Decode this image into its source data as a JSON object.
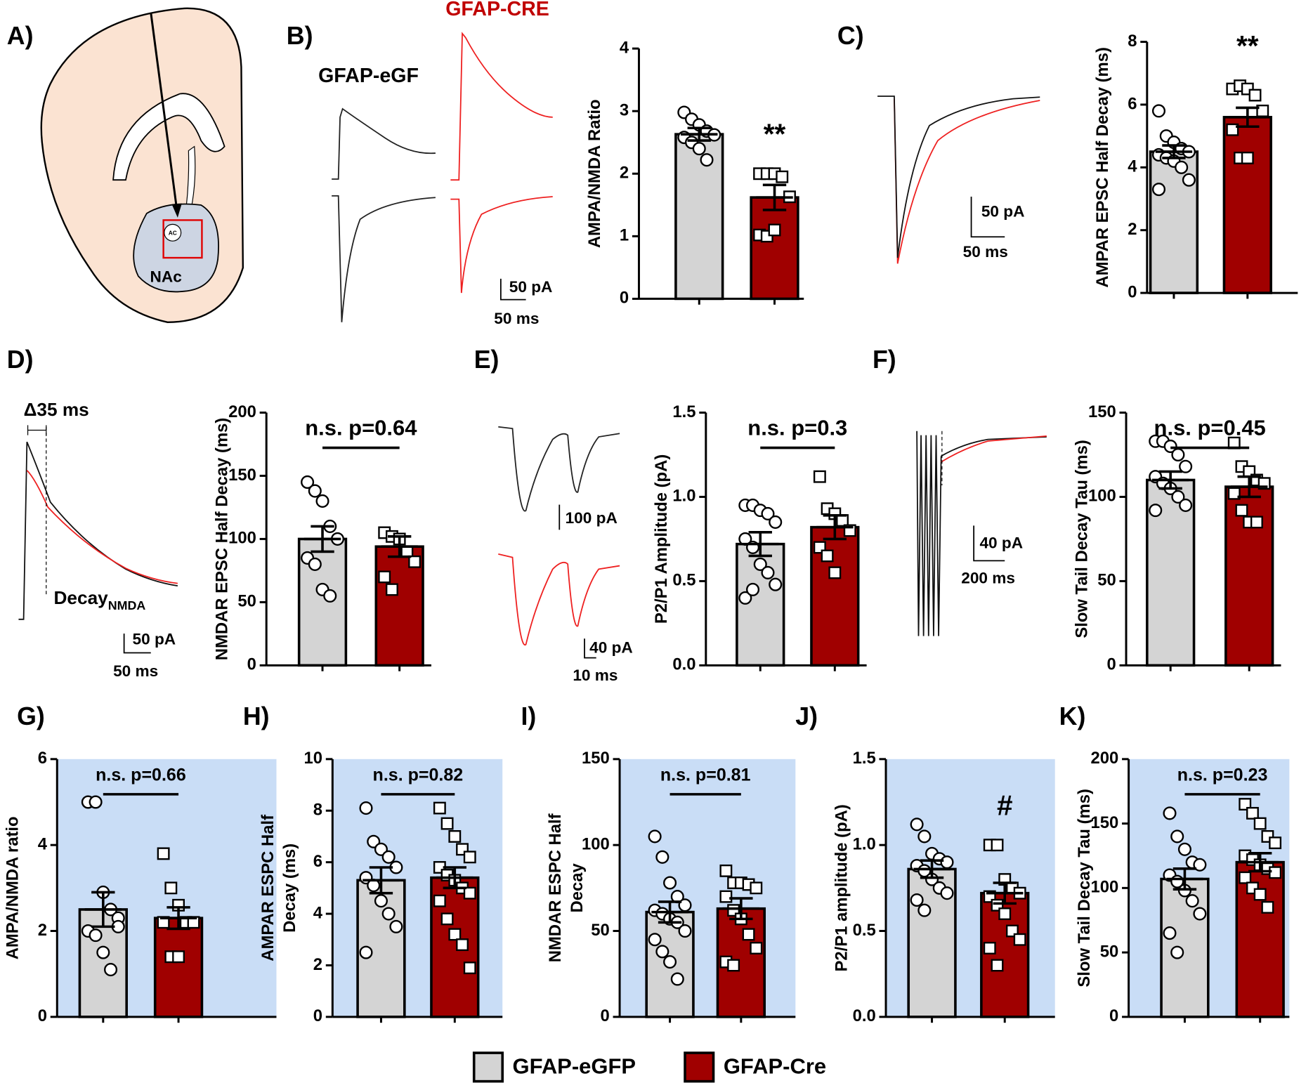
{
  "panel_labels": [
    "A)",
    "B)",
    "C)",
    "D)",
    "E)",
    "F)",
    "G)",
    "H)",
    "I)",
    "J)",
    "K)"
  ],
  "panel_a": {
    "region": "NAc",
    "ac": "AC"
  },
  "panel_b": {
    "egfp_label": "GFAP-eGF",
    "cre_label": "GFAP-CRE",
    "scale_y": "50 pA",
    "scale_x": "50 ms"
  },
  "panel_c": {
    "scale_y": "50 pA",
    "scale_x": "50 ms"
  },
  "panel_d": {
    "delta": "Δ35 ms",
    "decay": "Decay",
    "decay_sub": "NMDA",
    "scale_y": "50 pA",
    "scale_x": "50 ms"
  },
  "panel_e": {
    "scale_y_top": "100 pA",
    "scale_y_bottom": "40 pA",
    "scale_x": "10 ms"
  },
  "panel_f": {
    "scale_y": "40 pA",
    "scale_x": "200 ms"
  },
  "legend": {
    "names": [
      "GFAP-eGFP",
      "GFAP-Cre"
    ],
    "colors": [
      "#d4d4d4",
      "#a00000"
    ]
  },
  "chart_data": [
    {
      "type": "bar",
      "y_label": "AMPA/NMDA Ratio",
      "values": [
        2.63,
        1.62
      ],
      "errors": [
        0.1,
        0.2
      ],
      "colors": [
        "#d4d4d4",
        "#a00000"
      ],
      "markers": [
        "circle",
        "square"
      ],
      "points": [
        [
          2.98,
          2.87,
          2.78,
          2.68,
          2.62,
          2.58,
          2.5,
          2.4,
          2.22
        ],
        [
          2.0,
          2.0,
          2.0,
          1.95,
          1.63,
          1.02,
          1.0,
          1.1
        ]
      ],
      "ylim": [
        0,
        4
      ],
      "yticks": [
        0,
        1,
        2,
        3,
        4
      ],
      "annotation": "**",
      "sig_line": false
    },
    {
      "type": "bar",
      "y_label": "AMPAR  EPSC Half Decay (ms)",
      "values": [
        4.5,
        5.6
      ],
      "errors": [
        0.2,
        0.3
      ],
      "colors": [
        "#d4d4d4",
        "#a00000"
      ],
      "markers": [
        "circle",
        "square"
      ],
      "points": [
        [
          5.8,
          5.0,
          4.8,
          4.6,
          4.5,
          4.4,
          4.3,
          4.2,
          4.0,
          3.6,
          3.3
        ],
        [
          6.5,
          6.6,
          6.5,
          6.3,
          5.8,
          5.2,
          4.3,
          4.3
        ]
      ],
      "ylim": [
        0,
        8
      ],
      "yticks": [
        0,
        2,
        4,
        6,
        8
      ],
      "annotation": "**",
      "sig_line": false
    },
    {
      "type": "bar",
      "y_label": "NMDAR EPSC Half  Decay (ms)",
      "values": [
        100,
        94
      ],
      "errors": [
        10,
        8
      ],
      "colors": [
        "#d4d4d4",
        "#a00000"
      ],
      "markers": [
        "circle",
        "square"
      ],
      "points": [
        [
          145,
          138,
          130,
          110,
          100,
          85,
          80,
          60,
          55
        ],
        [
          105,
          102,
          100,
          90,
          82,
          70,
          60
        ]
      ],
      "ylim": [
        0,
        200
      ],
      "yticks": [
        0,
        50,
        100,
        150,
        200
      ],
      "annotation": "n.s. p=0.64",
      "sig_line": true
    },
    {
      "type": "bar",
      "y_label": "P2/P1 Amplitude (pA)",
      "values": [
        0.72,
        0.82
      ],
      "errors": [
        0.07,
        0.07
      ],
      "colors": [
        "#d4d4d4",
        "#a00000"
      ],
      "markers": [
        "circle",
        "square"
      ],
      "points": [
        [
          0.95,
          0.95,
          0.92,
          0.9,
          0.85,
          0.75,
          0.7,
          0.6,
          0.55,
          0.48,
          0.4,
          0.45
        ],
        [
          1.12,
          0.93,
          0.9,
          0.86,
          0.8,
          0.7,
          0.65,
          0.55
        ]
      ],
      "ylim": [
        0,
        1.5
      ],
      "yticks": [
        {
          "value": 0,
          "label": "0.0"
        },
        0.5,
        {
          "value": 1,
          "label": "1.0"
        },
        1.5
      ],
      "annotation": "n.s. p=0.3",
      "sig_line": true
    },
    {
      "type": "bar",
      "y_label": "Slow Tail Decay Tau (ms)",
      "values": [
        110,
        106
      ],
      "errors": [
        5,
        6
      ],
      "colors": [
        "#d4d4d4",
        "#a00000"
      ],
      "markers": [
        "circle",
        "square"
      ],
      "points": [
        [
          133,
          133,
          130,
          125,
          118,
          112,
          108,
          105,
          100,
          95,
          92
        ],
        [
          132,
          118,
          115,
          110,
          108,
          102,
          92,
          85,
          85
        ]
      ],
      "ylim": [
        0,
        150
      ],
      "yticks": [
        0,
        50,
        100,
        150
      ],
      "annotation": "n.s. p=0.45",
      "sig_line": true
    },
    {
      "type": "bar",
      "y_label": "AMPA/NMDA ratio",
      "values": [
        2.5,
        2.3
      ],
      "errors": [
        0.4,
        0.25
      ],
      "colors": [
        "#d4d4d4",
        "#a00000"
      ],
      "markers": [
        "circle",
        "square"
      ],
      "background": "#c9ddf6",
      "points": [
        [
          5.0,
          5.0,
          2.9,
          2.5,
          2.3,
          2.0,
          1.9,
          1.5,
          1.1,
          2.1
        ],
        [
          3.8,
          3.0,
          2.6,
          2.2,
          2.2,
          2.2,
          1.4,
          1.4
        ]
      ],
      "ylim": [
        0,
        6
      ],
      "yticks": [
        0,
        2,
        4,
        6
      ],
      "annotation": "n.s. p=0.66",
      "sig_line": true
    },
    {
      "type": "bar",
      "y_label": [
        "AMPAR ESPC Half",
        "Decay  (ms)"
      ],
      "values": [
        5.3,
        5.4
      ],
      "errors": [
        0.5,
        0.4
      ],
      "colors": [
        "#d4d4d4",
        "#a00000"
      ],
      "markers": [
        "circle",
        "square"
      ],
      "background": "#c9ddf6",
      "points": [
        [
          8.1,
          6.8,
          6.5,
          6.2,
          5.8,
          5.4,
          5.1,
          4.5,
          4.0,
          3.5,
          2.5
        ],
        [
          8.1,
          7.5,
          7.0,
          6.5,
          6.2,
          5.8,
          5.5,
          5.3,
          5.0,
          4.8,
          4.5,
          3.8,
          3.2,
          2.8,
          1.9
        ]
      ],
      "ylim": [
        0,
        10
      ],
      "yticks": [
        0,
        2,
        4,
        6,
        8,
        10
      ],
      "annotation": "n.s. p=0.82",
      "sig_line": true
    },
    {
      "type": "bar",
      "y_label": [
        "NMDAR ESPC Half",
        "Decay"
      ],
      "values": [
        61,
        63
      ],
      "errors": [
        6,
        6
      ],
      "colors": [
        "#d4d4d4",
        "#a00000"
      ],
      "markers": [
        "circle",
        "square"
      ],
      "background": "#c9ddf6",
      "points": [
        [
          105,
          93,
          78,
          70,
          65,
          62,
          60,
          57,
          55,
          50,
          45,
          38,
          32,
          22
        ],
        [
          85,
          78,
          78,
          77,
          75,
          70,
          62,
          57,
          48,
          40,
          32,
          30
        ]
      ],
      "ylim": [
        0,
        150
      ],
      "yticks": [
        0,
        50,
        100,
        150
      ],
      "annotation": "n.s. p=0.81",
      "sig_line": true
    },
    {
      "type": "bar",
      "y_label": "P2/P1 amplitude (pA)",
      "values": [
        0.86,
        0.72
      ],
      "errors": [
        0.05,
        0.06
      ],
      "colors": [
        "#d4d4d4",
        "#a00000"
      ],
      "markers": [
        "circle",
        "square"
      ],
      "background": "#c9ddf6",
      "points": [
        [
          1.12,
          1.05,
          0.95,
          0.92,
          0.9,
          0.88,
          0.85,
          0.8,
          0.75,
          0.72,
          0.68,
          0.62
        ],
        [
          1.0,
          1.0,
          0.8,
          0.75,
          0.72,
          0.7,
          0.65,
          0.6,
          0.5,
          0.45,
          0.4,
          0.3
        ]
      ],
      "ylim": [
        0,
        1.5
      ],
      "yticks": [
        {
          "value": 0,
          "label": "0.0"
        },
        0.5,
        {
          "value": 1,
          "label": "1.0"
        },
        1.5
      ],
      "annotation": "#",
      "sig_line": false
    },
    {
      "type": "bar",
      "y_label": "Slow Tail Decay Tau (ms)",
      "values": [
        107,
        120
      ],
      "errors": [
        8,
        7
      ],
      "colors": [
        "#d4d4d4",
        "#a00000"
      ],
      "markers": [
        "circle",
        "square"
      ],
      "background": "#c9ddf6",
      "points": [
        [
          158,
          140,
          130,
          120,
          118,
          110,
          105,
          98,
          90,
          80,
          65,
          50
        ],
        [
          165,
          158,
          150,
          140,
          135,
          125,
          122,
          118,
          115,
          112,
          108,
          100,
          95,
          85
        ]
      ],
      "ylim": [
        0,
        200
      ],
      "yticks": [
        0,
        50,
        100,
        150,
        200
      ],
      "annotation": "n.s. p=0.23",
      "sig_line": true
    }
  ]
}
